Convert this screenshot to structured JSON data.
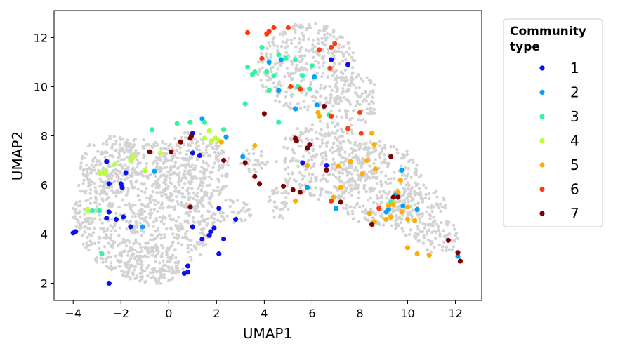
{
  "chart_data": {
    "type": "scatter",
    "xlabel": "UMAP1",
    "ylabel": "UMAP2",
    "xlim": [
      -4.8,
      13.1
    ],
    "ylim": [
      1.3,
      13.1
    ],
    "xticks": [
      -4,
      -2,
      0,
      2,
      4,
      6,
      8,
      10,
      12
    ],
    "xtick_labels": [
      "−4",
      "−2",
      "0",
      "2",
      "4",
      "6",
      "8",
      "10",
      "12"
    ],
    "yticks": [
      2,
      4,
      6,
      8,
      10,
      12
    ],
    "ytick_labels": [
      "2",
      "4",
      "6",
      "8",
      "10",
      "12"
    ],
    "grid": false,
    "legend": {
      "title_lines": [
        "Community",
        "type"
      ],
      "placement": "outside-right"
    },
    "background": {
      "name": "all",
      "color": "#d3d3d3",
      "regions": [
        {
          "cx": -1.0,
          "cy": 5.0,
          "rx": 3.0,
          "ry": 2.9
        },
        {
          "cx": 1.0,
          "cy": 6.6,
          "rx": 1.6,
          "ry": 1.6
        },
        {
          "cx": -2.4,
          "cy": 6.8,
          "rx": 1.3,
          "ry": 1.2
        },
        {
          "cx": -0.8,
          "cy": 2.7,
          "rx": 1.3,
          "ry": 0.8
        },
        {
          "cx": -3.6,
          "cy": 4.6,
          "rx": 0.5,
          "ry": 0.6
        },
        {
          "cx": 2.6,
          "cy": 4.9,
          "rx": 0.9,
          "ry": 0.5
        },
        {
          "cx": 5.8,
          "cy": 10.8,
          "rx": 2.1,
          "ry": 1.8
        },
        {
          "cx": 7.7,
          "cy": 9.5,
          "rx": 1.1,
          "ry": 1.1
        },
        {
          "cx": 6.5,
          "cy": 7.0,
          "rx": 2.0,
          "ry": 1.6
        },
        {
          "cx": 8.8,
          "cy": 6.0,
          "rx": 1.8,
          "ry": 1.8
        },
        {
          "cx": 10.4,
          "cy": 5.0,
          "rx": 1.2,
          "ry": 1.2
        },
        {
          "cx": 11.3,
          "cy": 3.9,
          "rx": 0.9,
          "ry": 0.7
        },
        {
          "cx": 3.6,
          "cy": 7.0,
          "rx": 0.6,
          "ry": 0.5
        },
        {
          "cx": 4.6,
          "cy": 5.3,
          "rx": 0.5,
          "ry": 0.7
        }
      ]
    },
    "series": [
      {
        "name": "1",
        "color": "#0a10f0",
        "points": [
          [
            -3.9,
            4.1
          ],
          [
            -4.0,
            4.05
          ],
          [
            -2.5,
            2.0
          ],
          [
            -2.6,
            4.65
          ],
          [
            -2.5,
            4.9
          ],
          [
            -2.2,
            4.6
          ],
          [
            -1.9,
            4.7
          ],
          [
            -1.6,
            4.3
          ],
          [
            -2.6,
            6.95
          ],
          [
            -2.0,
            6.05
          ],
          [
            -1.95,
            5.9
          ],
          [
            -2.5,
            6.05
          ],
          [
            -1.8,
            6.5
          ],
          [
            0.8,
            2.7
          ],
          [
            0.8,
            2.45
          ],
          [
            0.65,
            2.4
          ],
          [
            1.0,
            4.3
          ],
          [
            1.4,
            3.8
          ],
          [
            1.7,
            3.95
          ],
          [
            1.75,
            4.1
          ],
          [
            1.9,
            4.25
          ],
          [
            2.1,
            5.05
          ],
          [
            2.3,
            3.8
          ],
          [
            2.1,
            3.2
          ],
          [
            2.8,
            4.6
          ],
          [
            1.0,
            7.3
          ],
          [
            1.3,
            7.2
          ],
          [
            1.0,
            8.1
          ],
          [
            5.6,
            6.9
          ],
          [
            6.8,
            11.1
          ],
          [
            7.5,
            10.9
          ],
          [
            6.6,
            6.8
          ]
        ]
      },
      {
        "name": "2",
        "color": "#00a1ff",
        "points": [
          [
            -1.1,
            4.3
          ],
          [
            -0.6,
            6.55
          ],
          [
            1.4,
            8.7
          ],
          [
            2.4,
            7.95
          ],
          [
            3.1,
            7.15
          ],
          [
            4.2,
            11.0
          ],
          [
            4.6,
            9.85
          ],
          [
            4.7,
            11.1
          ],
          [
            5.3,
            9.1
          ],
          [
            6.1,
            10.4
          ],
          [
            6.2,
            9.25
          ],
          [
            5.8,
            5.9
          ],
          [
            7.0,
            5.05
          ],
          [
            9.1,
            4.9
          ],
          [
            9.2,
            5.0
          ],
          [
            9.5,
            5.6
          ],
          [
            9.75,
            6.6
          ],
          [
            9.8,
            5.15
          ],
          [
            10.4,
            5.0
          ],
          [
            12.1,
            3.1
          ]
        ]
      },
      {
        "name": "3",
        "color": "#2ff79d",
        "points": [
          [
            -2.8,
            3.2
          ],
          [
            -0.7,
            8.25
          ],
          [
            0.35,
            8.5
          ],
          [
            0.9,
            8.55
          ],
          [
            1.5,
            8.55
          ],
          [
            2.3,
            8.25
          ],
          [
            3.2,
            9.3
          ],
          [
            3.3,
            10.8
          ],
          [
            3.5,
            10.5
          ],
          [
            3.6,
            10.6
          ],
          [
            3.9,
            11.6
          ],
          [
            4.1,
            10.6
          ],
          [
            4.2,
            9.85
          ],
          [
            4.4,
            10.45
          ],
          [
            4.6,
            11.3
          ],
          [
            4.9,
            11.15
          ],
          [
            5.3,
            11.1
          ],
          [
            5.4,
            10.0
          ],
          [
            5.6,
            10.45
          ],
          [
            5.9,
            9.9
          ],
          [
            6.0,
            10.85
          ],
          [
            6.7,
            8.85
          ],
          [
            9.3,
            5.3
          ],
          [
            4.6,
            8.55
          ],
          [
            -2.9,
            4.95
          ],
          [
            -3.2,
            4.95
          ]
        ]
      },
      {
        "name": "4",
        "color": "#bbff3a",
        "points": [
          [
            -2.85,
            6.5
          ],
          [
            -2.65,
            6.45
          ],
          [
            -2.25,
            6.85
          ],
          [
            -1.6,
            7.0
          ],
          [
            -1.5,
            7.15
          ],
          [
            -1.0,
            6.6
          ],
          [
            -0.35,
            7.3
          ],
          [
            1.5,
            7.9
          ],
          [
            1.7,
            8.2
          ],
          [
            1.8,
            7.8
          ],
          [
            1.95,
            7.9
          ],
          [
            2.1,
            7.8
          ],
          [
            -3.4,
            4.95
          ],
          [
            -2.7,
            6.55
          ]
        ]
      },
      {
        "name": "5",
        "color": "#ffae00",
        "points": [
          [
            2.2,
            7.75
          ],
          [
            3.6,
            7.6
          ],
          [
            5.3,
            5.35
          ],
          [
            5.8,
            6.8
          ],
          [
            6.25,
            8.95
          ],
          [
            6.3,
            8.8
          ],
          [
            6.9,
            5.5
          ],
          [
            7.1,
            6.75
          ],
          [
            7.2,
            5.9
          ],
          [
            7.6,
            6.95
          ],
          [
            8.1,
            6.45
          ],
          [
            8.3,
            7.0
          ],
          [
            8.5,
            8.1
          ],
          [
            8.6,
            7.65
          ],
          [
            8.65,
            6.65
          ],
          [
            8.4,
            4.85
          ],
          [
            8.6,
            4.5
          ],
          [
            9.2,
            5.15
          ],
          [
            9.4,
            5.2
          ],
          [
            9.6,
            5.7
          ],
          [
            9.7,
            6.2
          ],
          [
            9.75,
            4.9
          ],
          [
            10.0,
            4.6
          ],
          [
            10.3,
            4.55
          ],
          [
            10.0,
            3.45
          ],
          [
            10.4,
            3.2
          ],
          [
            10.9,
            3.15
          ],
          [
            9.1,
            4.6
          ],
          [
            9.3,
            4.7
          ],
          [
            10.0,
            5.1
          ]
        ]
      },
      {
        "name": "6",
        "color": "#ff3b0e",
        "points": [
          [
            3.3,
            12.2
          ],
          [
            3.9,
            11.15
          ],
          [
            4.1,
            12.15
          ],
          [
            4.2,
            12.25
          ],
          [
            4.4,
            12.4
          ],
          [
            5.0,
            12.4
          ],
          [
            5.1,
            10.0
          ],
          [
            5.5,
            9.9
          ],
          [
            6.3,
            11.5
          ],
          [
            6.75,
            10.75
          ],
          [
            6.8,
            11.6
          ],
          [
            6.95,
            11.75
          ],
          [
            6.8,
            8.8
          ],
          [
            7.5,
            8.3
          ],
          [
            8.0,
            8.95
          ],
          [
            6.8,
            5.35
          ],
          [
            8.05,
            8.1
          ],
          [
            8.8,
            5.05
          ]
        ]
      },
      {
        "name": "7",
        "color": "#7f0000",
        "points": [
          [
            -0.8,
            7.35
          ],
          [
            0.1,
            7.35
          ],
          [
            0.5,
            7.75
          ],
          [
            0.9,
            7.9
          ],
          [
            0.95,
            8.0
          ],
          [
            0.9,
            5.1
          ],
          [
            2.3,
            7.0
          ],
          [
            3.2,
            6.9
          ],
          [
            3.6,
            6.35
          ],
          [
            3.8,
            6.05
          ],
          [
            4.8,
            5.95
          ],
          [
            5.2,
            5.8
          ],
          [
            5.5,
            5.7
          ],
          [
            5.3,
            7.9
          ],
          [
            5.35,
            7.8
          ],
          [
            5.8,
            7.5
          ],
          [
            5.9,
            7.65
          ],
          [
            6.5,
            9.2
          ],
          [
            6.6,
            6.6
          ],
          [
            7.2,
            5.3
          ],
          [
            8.5,
            4.4
          ],
          [
            9.3,
            7.15
          ],
          [
            9.4,
            5.5
          ],
          [
            9.6,
            5.5
          ],
          [
            11.7,
            3.75
          ],
          [
            12.1,
            3.25
          ],
          [
            12.2,
            2.9
          ],
          [
            4.0,
            8.9
          ]
        ]
      }
    ]
  }
}
